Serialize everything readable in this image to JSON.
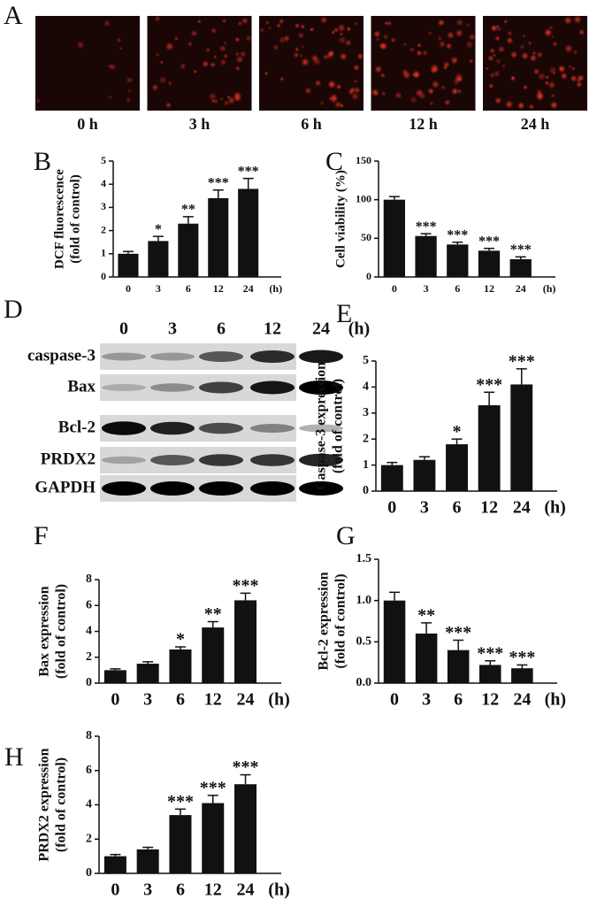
{
  "panel_a": {
    "label": "A",
    "times": [
      "0 h",
      "3 h",
      "6 h",
      "12 h",
      "24 h"
    ]
  },
  "panel_d": {
    "label": "D",
    "lanes": [
      "0",
      "3",
      "6",
      "12",
      "24"
    ],
    "unit": "(h)",
    "rows": [
      "caspase-3",
      "Bax",
      "Bcl-2",
      "PRDX2",
      "GAPDH"
    ]
  },
  "chart_data": [
    {
      "type": "bar",
      "panel": "B",
      "ylabel": [
        "DCF fluorescence",
        "(fold of control)"
      ],
      "categories": [
        "0",
        "3",
        "6",
        "12",
        "24"
      ],
      "x_unit": "(h)",
      "values": [
        1.0,
        1.55,
        2.3,
        3.4,
        3.8
      ],
      "errors": [
        0.1,
        0.2,
        0.3,
        0.35,
        0.45
      ],
      "annotations": [
        null,
        "*",
        "**",
        "***",
        "***"
      ],
      "color": "#111111",
      "ylim": [
        0,
        5
      ],
      "yticks": [
        0,
        1,
        2,
        3,
        4,
        5
      ]
    },
    {
      "type": "bar",
      "panel": "C",
      "ylabel": [
        "Cell viability (%)"
      ],
      "categories": [
        "0",
        "3",
        "6",
        "12",
        "24"
      ],
      "x_unit": "(h)",
      "values": [
        100,
        53,
        42,
        34,
        23
      ],
      "errors": [
        4,
        3,
        3,
        3,
        3
      ],
      "annotations": [
        null,
        "***",
        "***",
        "***",
        "***"
      ],
      "color": "#111111",
      "ylim": [
        0,
        150
      ],
      "yticks": [
        0,
        50,
        100,
        150
      ]
    },
    {
      "type": "bar",
      "panel": "E",
      "ylabel": [
        "Caspase-3 expression",
        "(fold of control)"
      ],
      "categories": [
        "0",
        "3",
        "6",
        "12",
        "24"
      ],
      "x_unit": "(h)",
      "values": [
        1.0,
        1.2,
        1.8,
        3.3,
        4.1
      ],
      "errors": [
        0.1,
        0.12,
        0.2,
        0.5,
        0.6
      ],
      "annotations": [
        null,
        null,
        "*",
        "***",
        "***"
      ],
      "color": "#111111",
      "ylim": [
        0,
        5
      ],
      "yticks": [
        0,
        1,
        2,
        3,
        4,
        5
      ]
    },
    {
      "type": "bar",
      "panel": "F",
      "ylabel": [
        "Bax expression",
        "(fold of control)"
      ],
      "categories": [
        "0",
        "3",
        "6",
        "12",
        "24"
      ],
      "x_unit": "(h)",
      "values": [
        1.0,
        1.5,
        2.6,
        4.3,
        6.4
      ],
      "errors": [
        0.1,
        0.15,
        0.2,
        0.45,
        0.55
      ],
      "annotations": [
        null,
        null,
        "*",
        "**",
        "***"
      ],
      "color": "#111111",
      "ylim": [
        0,
        8
      ],
      "yticks": [
        0,
        2,
        4,
        6,
        8
      ]
    },
    {
      "type": "bar",
      "panel": "G",
      "ylabel": [
        "Bcl-2  expression",
        "(fold of control)"
      ],
      "categories": [
        "0",
        "3",
        "6",
        "12",
        "24"
      ],
      "x_unit": "(h)",
      "values": [
        1.0,
        0.6,
        0.4,
        0.22,
        0.18
      ],
      "errors": [
        0.1,
        0.13,
        0.12,
        0.05,
        0.04
      ],
      "annotations": [
        null,
        "**",
        "***",
        "***",
        "***"
      ],
      "color": "#111111",
      "ylim": [
        0,
        1.5
      ],
      "yticks": [
        {
          "value": 0,
          "label": "0.0"
        },
        {
          "value": 0.5,
          "label": "0.5"
        },
        {
          "value": 1,
          "label": "1.0"
        },
        {
          "value": 1.5,
          "label": "1.5"
        }
      ]
    },
    {
      "type": "bar",
      "panel": "H",
      "ylabel": [
        "PRDX2 expression",
        "(fold of control)"
      ],
      "categories": [
        "0",
        "3",
        "6",
        "12",
        "24"
      ],
      "x_unit": "(h)",
      "values": [
        1.0,
        1.4,
        3.4,
        4.1,
        5.2
      ],
      "errors": [
        0.1,
        0.12,
        0.35,
        0.45,
        0.55
      ],
      "annotations": [
        null,
        null,
        "***",
        "***",
        "***"
      ],
      "color": "#111111",
      "ylim": [
        0,
        8
      ],
      "yticks": [
        0,
        2,
        4,
        6,
        8
      ]
    }
  ]
}
